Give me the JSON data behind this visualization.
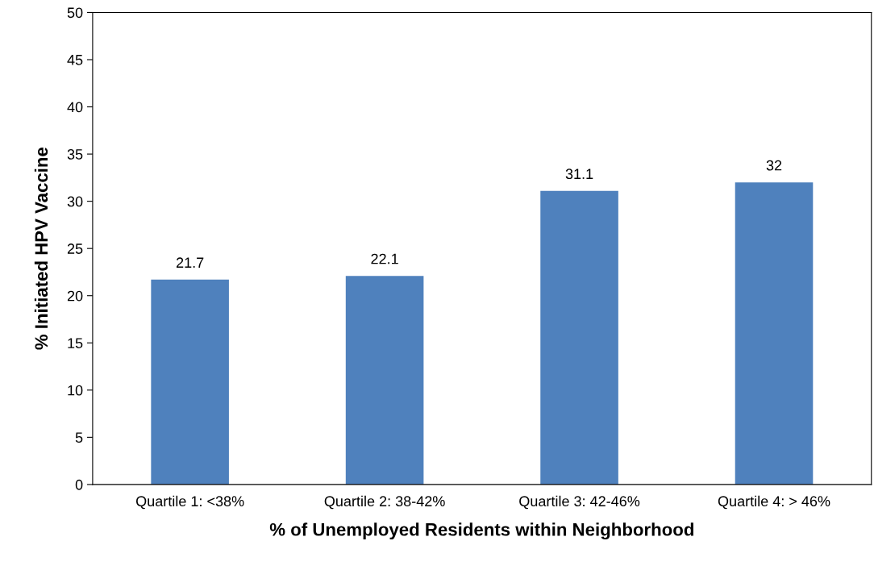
{
  "chart_data": {
    "type": "bar",
    "xlabel": "% of Unemployed Residents within Neighborhood",
    "ylabel": "% Initiated HPV Vaccine",
    "categories": [
      "Quartile 1: <38%",
      "Quartile 2: 38-42%",
      "Quartile 3: 42-46%",
      "Quartile 4: > 46%"
    ],
    "values": [
      21.7,
      22.1,
      31.1,
      32
    ],
    "color": "#4f81bd",
    "ylim": [
      0,
      50
    ],
    "yticks": [
      0,
      5,
      10,
      15,
      20,
      25,
      30,
      35,
      40,
      45,
      50
    ],
    "grid": false,
    "legend": false,
    "data_labels": true
  }
}
